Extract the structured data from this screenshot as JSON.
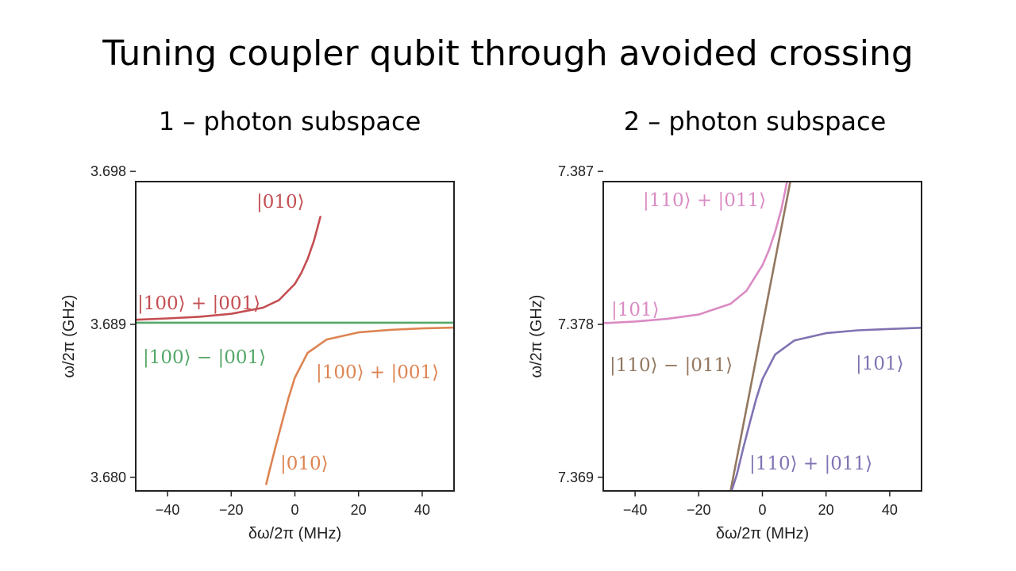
{
  "slide": {
    "title": "Tuning coupler qubit through avoided crossing"
  },
  "chart_data": [
    {
      "type": "line",
      "subtitle": "1 – photon subspace",
      "xlabel": "δω/2π (MHz)",
      "ylabel": "ω/2π (GHz)",
      "xlim": [
        -50,
        50
      ],
      "ylim": [
        3.6792,
        3.6974
      ],
      "x_ticks": [
        -40,
        -20,
        0,
        20,
        40
      ],
      "x_tick_labels": [
        "−40",
        "−20",
        "0",
        "20",
        "40"
      ],
      "y_ticks": [
        3.68,
        3.689,
        3.698
      ],
      "y_tick_labels": [
        "3.680",
        "3.689",
        "3.698"
      ],
      "series": [
        {
          "color": "#c44e52",
          "points": [
            [
              -50,
              3.68927
            ],
            [
              -40,
              3.68935
            ],
            [
              -30,
              3.68945
            ],
            [
              -20,
              3.68962
            ],
            [
              -10,
              3.68998
            ],
            [
              -5,
              3.69043
            ],
            [
              0,
              3.69138
            ],
            [
              2,
              3.69202
            ],
            [
              4,
              3.69284
            ],
            [
              6,
              3.69393
            ],
            [
              8,
              3.69533
            ]
          ]
        },
        {
          "color": "#55a868",
          "points": [
            [
              -50,
              3.6891
            ],
            [
              50,
              3.6891
            ]
          ]
        },
        {
          "color": "#dd8452",
          "points": [
            [
              -9,
              3.6796
            ],
            [
              -8,
              3.68037
            ],
            [
              -6,
              3.68184
            ],
            [
              -4,
              3.68327
            ],
            [
              -2,
              3.68467
            ],
            [
              0,
              3.68587
            ],
            [
              4,
              3.68732
            ],
            [
              10,
              3.68811
            ],
            [
              20,
              3.68853
            ],
            [
              30,
              3.68868
            ],
            [
              40,
              3.68876
            ],
            [
              50,
              3.68881
            ]
          ]
        }
      ],
      "annotations": [
        {
          "text": "|010⟩",
          "color": "#c44e52"
        },
        {
          "text": "|100⟩ + |001⟩",
          "color": "#c44e52"
        },
        {
          "text": "|100⟩ − |001⟩",
          "color": "#55a868"
        },
        {
          "text": "|100⟩ + |001⟩",
          "color": "#dd8452"
        },
        {
          "text": "|010⟩",
          "color": "#dd8452"
        }
      ]
    },
    {
      "type": "line",
      "subtitle": "2 – photon subspace",
      "xlabel": "δω/2π (MHz)",
      "ylabel": "ω/2π (GHz)",
      "xlim": [
        -50,
        50
      ],
      "ylim": [
        7.3682,
        7.3864
      ],
      "x_ticks": [
        -40,
        -20,
        0,
        20,
        40
      ],
      "x_tick_labels": [
        "−40",
        "−20",
        "0",
        "20",
        "40"
      ],
      "y_ticks": [
        7.369,
        7.378,
        7.387
      ],
      "y_tick_labels": [
        "7.369",
        "7.378",
        "7.387"
      ],
      "series": [
        {
          "color": "#da8bc3",
          "points": [
            [
              -50,
              7.37807
            ],
            [
              -40,
              7.37817
            ],
            [
              -30,
              7.37832
            ],
            [
              -20,
              7.37858
            ],
            [
              -10,
              7.37921
            ],
            [
              -5,
              7.37998
            ],
            [
              0,
              7.38147
            ],
            [
              2,
              7.38234
            ],
            [
              4,
              7.38344
            ],
            [
              6,
              7.38481
            ],
            [
              8,
              7.38664
            ],
            [
              9.5,
              7.38765
            ]
          ]
        },
        {
          "color": "#937860",
          "points": [
            [
              -10,
              7.3682
            ],
            [
              10,
              7.3876
            ]
          ]
        },
        {
          "color": "#8172b3",
          "points": [
            [
              -9.5,
              7.3683
            ],
            [
              -8,
              7.36918
            ],
            [
              -6,
              7.37072
            ],
            [
              -4,
              7.37218
            ],
            [
              -2,
              7.37358
            ],
            [
              0,
              7.37477
            ],
            [
              4,
              7.37622
            ],
            [
              10,
              7.37705
            ],
            [
              20,
              7.37748
            ],
            [
              30,
              7.37765
            ],
            [
              40,
              7.37773
            ],
            [
              50,
              7.3778
            ]
          ]
        }
      ],
      "annotations": [
        {
          "text": "|110⟩ + |011⟩",
          "color": "#da8bc3"
        },
        {
          "text": "|101⟩",
          "color": "#da8bc3"
        },
        {
          "text": "|110⟩ − |011⟩",
          "color": "#937860"
        },
        {
          "text": "|101⟩",
          "color": "#8172b3"
        },
        {
          "text": "|110⟩ + |011⟩",
          "color": "#8172b3"
        }
      ]
    }
  ]
}
